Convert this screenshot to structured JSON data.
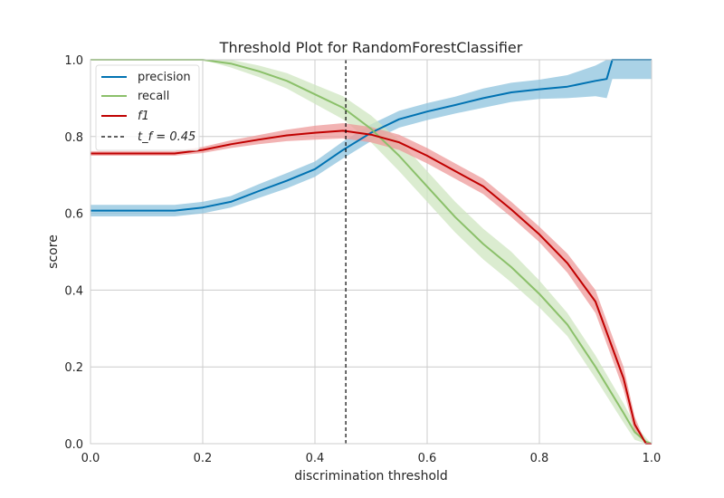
{
  "chart_data": {
    "type": "line",
    "title": "Threshold Plot for RandomForestClassifier",
    "xlabel": "discrimination threshold",
    "ylabel": "score",
    "xlim": [
      0,
      1
    ],
    "ylim": [
      0,
      1
    ],
    "xticks": [
      "0.0",
      "0.2",
      "0.4",
      "0.6",
      "0.8",
      "1.0"
    ],
    "yticks": [
      "0.0",
      "0.2",
      "0.4",
      "0.6",
      "0.8",
      "1.0"
    ],
    "grid": true,
    "legend_position": "top-left",
    "threshold": {
      "name": "t_f = 0.45",
      "value": 0.455,
      "color": "#000000"
    },
    "series": [
      {
        "name": "precision",
        "color": "#0072B2",
        "band_color": "#8DC3DE",
        "points": [
          [
            0.0,
            0.607
          ],
          [
            0.1,
            0.607
          ],
          [
            0.15,
            0.607
          ],
          [
            0.2,
            0.615
          ],
          [
            0.25,
            0.63
          ],
          [
            0.3,
            0.658
          ],
          [
            0.35,
            0.685
          ],
          [
            0.4,
            0.715
          ],
          [
            0.45,
            0.765
          ],
          [
            0.5,
            0.81
          ],
          [
            0.55,
            0.845
          ],
          [
            0.6,
            0.865
          ],
          [
            0.65,
            0.882
          ],
          [
            0.7,
            0.9
          ],
          [
            0.75,
            0.915
          ],
          [
            0.8,
            0.923
          ],
          [
            0.85,
            0.93
          ],
          [
            0.9,
            0.945
          ],
          [
            0.92,
            0.95
          ],
          [
            0.93,
            1.0
          ],
          [
            1.0,
            1.0
          ]
        ],
        "band": [
          0.015,
          0.015,
          0.015,
          0.015,
          0.015,
          0.018,
          0.02,
          0.02,
          0.022,
          0.022,
          0.022,
          0.022,
          0.022,
          0.025,
          0.025,
          0.025,
          0.03,
          0.04,
          0.05,
          0.05,
          0.05
        ]
      },
      {
        "name": "recall",
        "color": "#8BC06A",
        "band_color": "#CFE5C0",
        "points": [
          [
            0.0,
            1.0
          ],
          [
            0.1,
            1.0
          ],
          [
            0.2,
            1.0
          ],
          [
            0.25,
            0.99
          ],
          [
            0.3,
            0.97
          ],
          [
            0.35,
            0.945
          ],
          [
            0.4,
            0.91
          ],
          [
            0.45,
            0.875
          ],
          [
            0.5,
            0.82
          ],
          [
            0.55,
            0.75
          ],
          [
            0.6,
            0.67
          ],
          [
            0.65,
            0.59
          ],
          [
            0.7,
            0.52
          ],
          [
            0.75,
            0.46
          ],
          [
            0.8,
            0.39
          ],
          [
            0.85,
            0.31
          ],
          [
            0.9,
            0.2
          ],
          [
            0.95,
            0.08
          ],
          [
            0.97,
            0.03
          ],
          [
            0.99,
            0.005
          ],
          [
            1.0,
            0.0
          ]
        ],
        "band": [
          0.0,
          0.0,
          0.0,
          0.01,
          0.015,
          0.02,
          0.025,
          0.03,
          0.035,
          0.04,
          0.04,
          0.04,
          0.04,
          0.04,
          0.035,
          0.03,
          0.03,
          0.025,
          0.02,
          0.01,
          0.0
        ]
      },
      {
        "name": "f1",
        "color": "#C00000",
        "band_color": "#ED9A9A",
        "points": [
          [
            0.0,
            0.756
          ],
          [
            0.1,
            0.756
          ],
          [
            0.15,
            0.756
          ],
          [
            0.2,
            0.765
          ],
          [
            0.25,
            0.78
          ],
          [
            0.3,
            0.792
          ],
          [
            0.35,
            0.803
          ],
          [
            0.4,
            0.81
          ],
          [
            0.45,
            0.815
          ],
          [
            0.5,
            0.805
          ],
          [
            0.55,
            0.785
          ],
          [
            0.6,
            0.75
          ],
          [
            0.65,
            0.71
          ],
          [
            0.7,
            0.67
          ],
          [
            0.75,
            0.61
          ],
          [
            0.8,
            0.545
          ],
          [
            0.85,
            0.47
          ],
          [
            0.9,
            0.37
          ],
          [
            0.95,
            0.17
          ],
          [
            0.97,
            0.05
          ],
          [
            0.99,
            0.0
          ],
          [
            1.0,
            0.0
          ]
        ],
        "band": [
          0.006,
          0.006,
          0.006,
          0.008,
          0.01,
          0.012,
          0.015,
          0.018,
          0.02,
          0.02,
          0.02,
          0.02,
          0.02,
          0.02,
          0.02,
          0.02,
          0.025,
          0.03,
          0.03,
          0.02,
          0.0,
          0.0
        ]
      }
    ]
  }
}
